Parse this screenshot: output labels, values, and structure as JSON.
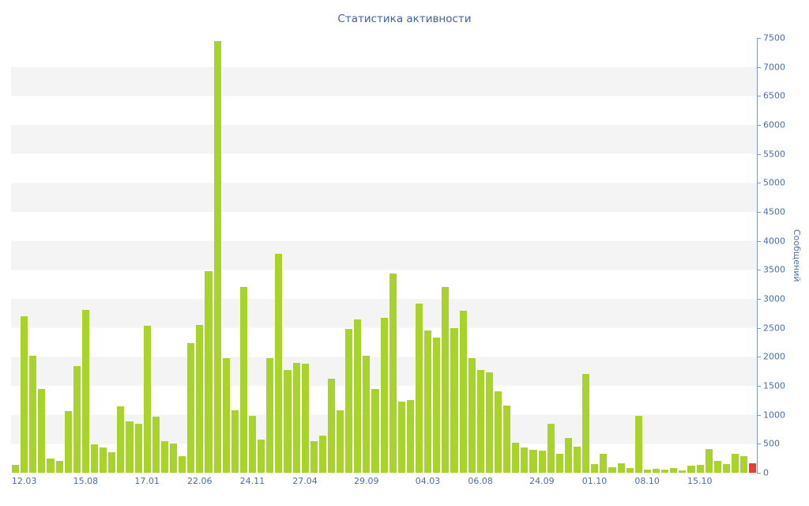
{
  "title": "Статистика активности",
  "colors": {
    "bar": "#a8d32a",
    "highlight_bar": "#e0432d",
    "axis_line": "#7e9cc0",
    "tick_text": "#4a6fa5",
    "title_text": "#41629e",
    "band": "#f4f4f4",
    "background": "#ffffff"
  },
  "chart_data": {
    "type": "bar",
    "title": "Статистика активности",
    "xlabel": "",
    "ylabel": "Сообщений",
    "ylim": [
      0,
      7500
    ],
    "y_tick_step": 500,
    "y_tick_labels": [
      "0",
      "500",
      "1000",
      "1500",
      "2000",
      "2500",
      "3000",
      "3500",
      "4000",
      "4500",
      "5000",
      "5500",
      "6000",
      "6500",
      "7000",
      "7500"
    ],
    "axis_side": "right",
    "grid": "horizontal-bands",
    "legend_position": "none",
    "x_tick_labels": [
      "12.03",
      "15.08",
      "17.01",
      "22.06",
      "24.11",
      "27.04",
      "29.09",
      "04.03",
      "06.08",
      "24.09",
      "01.10",
      "08.10",
      "15.10"
    ],
    "x_tick_indices": [
      1,
      8,
      15,
      21,
      27,
      33,
      40,
      47,
      53,
      60,
      66,
      72,
      78
    ],
    "values": [
      130,
      2700,
      2020,
      1450,
      245,
      200,
      1060,
      1840,
      2810,
      490,
      430,
      350,
      1150,
      890,
      845,
      2540,
      970,
      550,
      500,
      290,
      2240,
      2550,
      3480,
      7450,
      1980,
      1080,
      3200,
      980,
      570,
      1980,
      3780,
      1775,
      1900,
      1885,
      545,
      640,
      1625,
      1080,
      2480,
      2650,
      2020,
      1450,
      2670,
      3440,
      1230,
      1255,
      2920,
      2455,
      2330,
      3210,
      2500,
      2800,
      1980,
      1775,
      1730,
      1400,
      1160,
      520,
      440,
      400,
      380,
      845,
      330,
      600,
      450,
      1700,
      150,
      330,
      100,
      165,
      80,
      980,
      55,
      70,
      50,
      80,
      40,
      120,
      135,
      410,
      200,
      150,
      330,
      290,
      165
    ],
    "highlight_last_bar": true
  }
}
